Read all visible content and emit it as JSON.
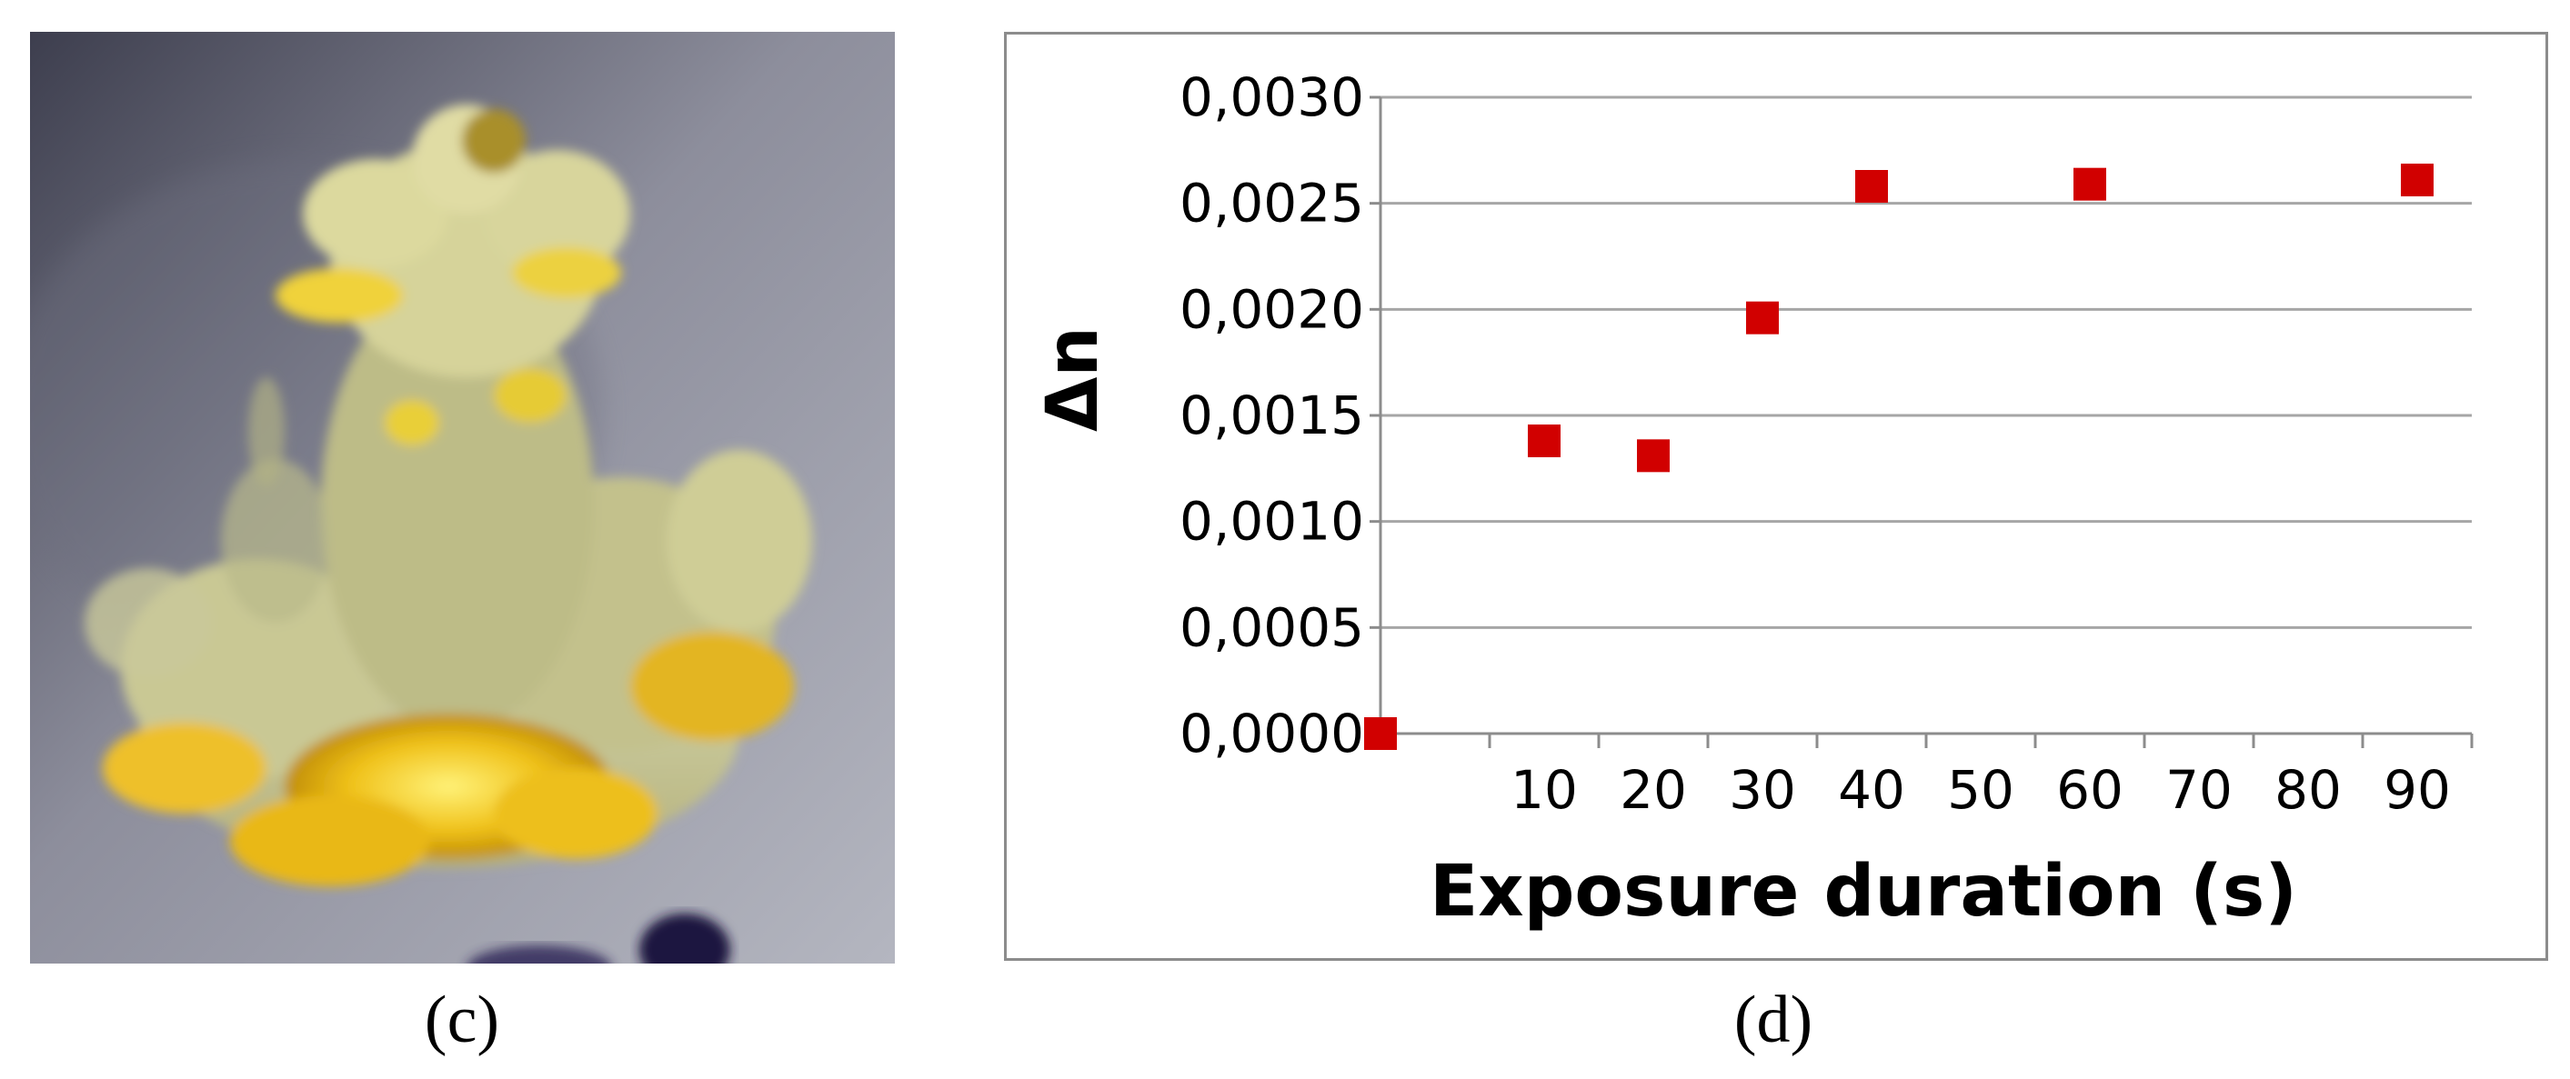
{
  "panels": {
    "photo_label": "(c)",
    "chart_label": "(d)"
  },
  "photo": {
    "icon": "resin-flower-sculpture-photo"
  },
  "colors": {
    "marker": "#d10000",
    "grid": "#a6a6a6",
    "axis": "#8c8c8c"
  },
  "chart_data": {
    "type": "scatter",
    "xlabel": "Exposure duration (s)",
    "ylabel": "Δn",
    "x_categories": [
      "",
      "10",
      "20",
      "30",
      "40",
      "50",
      "60",
      "70",
      "80",
      "90"
    ],
    "yticks": [
      "0,0000",
      "0,0005",
      "0,0010",
      "0,0015",
      "0,0020",
      "0,0025",
      "0,0030"
    ],
    "ylim": [
      0,
      0.003
    ],
    "ytick_step": 0.0005,
    "grid": "horizontal",
    "legend": "none",
    "points": [
      {
        "x": 0,
        "y": 0.0
      },
      {
        "x": 10,
        "y": 0.00138
      },
      {
        "x": 20,
        "y": 0.00131
      },
      {
        "x": 30,
        "y": 0.00196
      },
      {
        "x": 40,
        "y": 0.00258
      },
      {
        "x": 60,
        "y": 0.00259
      },
      {
        "x": 90,
        "y": 0.00261
      }
    ]
  }
}
